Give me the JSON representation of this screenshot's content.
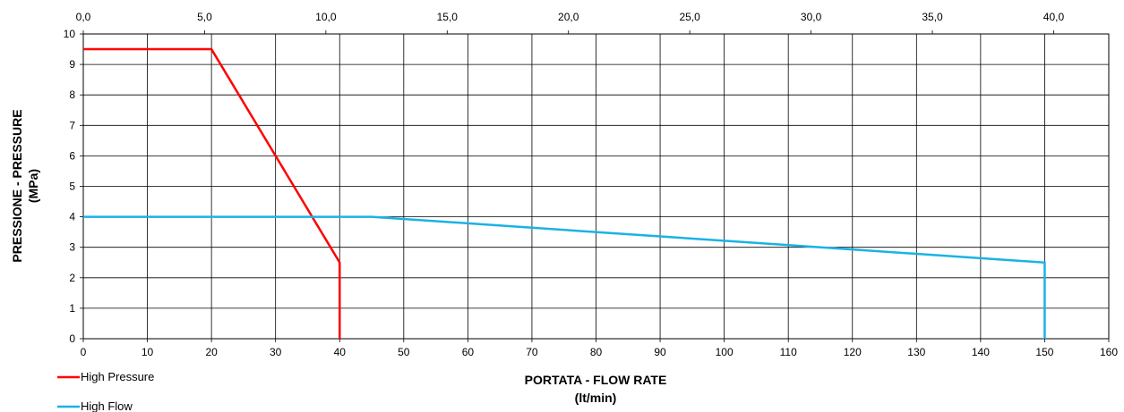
{
  "chart_data": {
    "type": "line",
    "xlabel": "PORTATA - FLOW RATE",
    "xlabel_unit": "(lt/min)",
    "ylabel": "PRESSIONE - PRESSURE",
    "ylabel_unit": "(MPa)",
    "xlim": [
      0,
      160
    ],
    "ylim": [
      0,
      10
    ],
    "x_ticks": [
      "0",
      "10",
      "20",
      "30",
      "40",
      "50",
      "60",
      "70",
      "80",
      "90",
      "100",
      "110",
      "120",
      "130",
      "140",
      "150",
      "160"
    ],
    "y_ticks": [
      "0",
      "1",
      "2",
      "3",
      "4",
      "5",
      "6",
      "7",
      "8",
      "9",
      "10"
    ],
    "x2_ticks": [
      {
        "value": 0.0,
        "label": "0,0"
      },
      {
        "value": 5.0,
        "label": "5,0"
      },
      {
        "value": 10.0,
        "label": "10,0"
      },
      {
        "value": 15.0,
        "label": "15,0"
      },
      {
        "value": 20.0,
        "label": "20,0"
      },
      {
        "value": 25.0,
        "label": "25,0"
      },
      {
        "value": 30.0,
        "label": "30,0"
      },
      {
        "value": 35.0,
        "label": "35,0"
      },
      {
        "value": 40.0,
        "label": "40,0"
      }
    ],
    "x2_scale_factor": 3.785,
    "grid": true,
    "legend_position": "bottom-left",
    "series": [
      {
        "name": "High Pressure",
        "color": "#ff0000",
        "points": [
          [
            0,
            9.5
          ],
          [
            20,
            9.5
          ],
          [
            30,
            6
          ],
          [
            40,
            2.5
          ],
          [
            40,
            0
          ]
        ]
      },
      {
        "name": "High Flow",
        "color": "#1ab2e6",
        "points": [
          [
            0,
            4
          ],
          [
            45,
            4
          ],
          [
            150,
            2.5
          ],
          [
            150,
            0
          ]
        ]
      }
    ]
  }
}
